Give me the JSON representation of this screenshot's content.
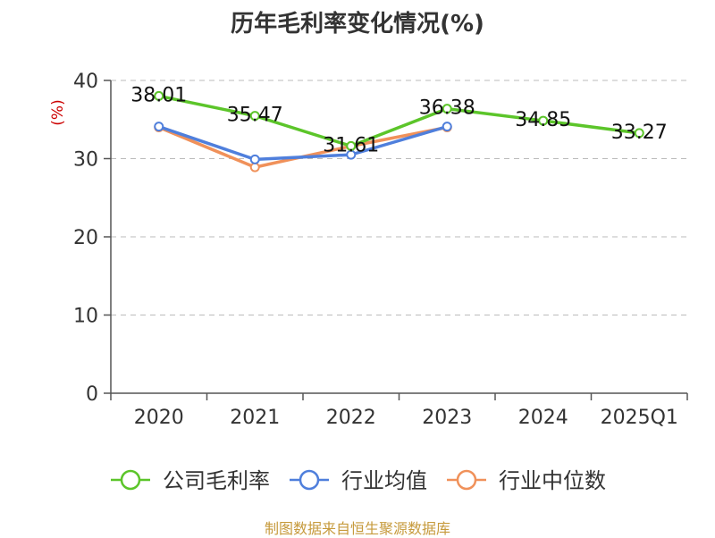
{
  "chart_data": {
    "type": "line",
    "title": "历年毛利率变化情况(%)",
    "ylabel": "(%)",
    "xlabel": "",
    "categories": [
      "2020",
      "2021",
      "2022",
      "2023",
      "2024",
      "2025Q1"
    ],
    "ylim": [
      0,
      40
    ],
    "yticks": [
      "0",
      "10",
      "20",
      "30",
      "40"
    ],
    "grid": true,
    "legend_position": "bottom",
    "series": [
      {
        "name": "公司毛利率",
        "color": "#5cc52a",
        "values": [
          38.01,
          35.47,
          31.61,
          36.38,
          34.85,
          33.27
        ],
        "labels": [
          "38.01",
          "35.47",
          "31.61",
          "36.38",
          "34.85",
          "33.27"
        ]
      },
      {
        "name": "行业均值",
        "color": "#4f7fdc",
        "values": [
          34.1,
          29.9,
          30.5,
          34.1,
          null,
          null
        ]
      },
      {
        "name": "行业中位数",
        "color": "#f0915a",
        "values": [
          34.0,
          28.9,
          31.6,
          34.0,
          null,
          null
        ]
      }
    ]
  },
  "footer": {
    "source": "制图数据来自恒生聚源数据库"
  }
}
